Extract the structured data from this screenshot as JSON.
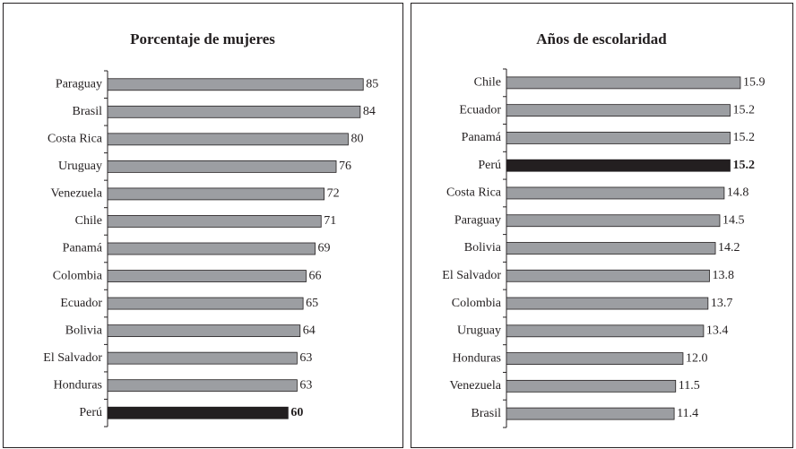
{
  "chart_data": [
    {
      "type": "bar",
      "orientation": "horizontal",
      "title": "Porcentaje de mujeres",
      "categories": [
        "Paraguay",
        "Brasil",
        "Costa Rica",
        "Uruguay",
        "Venezuela",
        "Chile",
        "Panamá",
        "Colombia",
        "Ecuador",
        "Bolivia",
        "El Salvador",
        "Honduras",
        "Perú"
      ],
      "values": [
        85,
        84,
        80,
        76,
        72,
        71,
        69,
        66,
        65,
        64,
        63,
        63,
        60
      ],
      "color": "#9c9ea2",
      "colors": [
        "#9c9ea2",
        "#9c9ea2",
        "#9c9ea2",
        "#9c9ea2",
        "#9c9ea2",
        "#9c9ea2",
        "#9c9ea2",
        "#9c9ea2",
        "#9c9ea2",
        "#9c9ea2",
        "#9c9ea2",
        "#9c9ea2",
        "#231f20"
      ],
      "xlim": [
        0,
        90
      ]
    },
    {
      "type": "bar",
      "orientation": "horizontal",
      "title": "Años de escolaridad",
      "categories": [
        "Chile",
        "Ecuador",
        "Panamá",
        "Perú",
        "Costa Rica",
        "Paraguay",
        "Bolivia",
        "El Salvador",
        "Colombia",
        "Uruguay",
        "Honduras",
        "Venezuela",
        "Brasil"
      ],
      "values": [
        15.9,
        15.2,
        15.2,
        15.2,
        14.8,
        14.5,
        14.2,
        13.8,
        13.7,
        13.4,
        12.0,
        11.5,
        11.4
      ],
      "value_labels": [
        "15.9",
        "15.2",
        "15.2",
        "15.2",
        "14.8",
        "14.5",
        "14.2",
        "13.8",
        "13.7",
        "13.4",
        "12.0",
        "11.5",
        "11.4"
      ],
      "color": "#9c9ea2",
      "colors": [
        "#9c9ea2",
        "#9c9ea2",
        "#9c9ea2",
        "#231f20",
        "#9c9ea2",
        "#9c9ea2",
        "#9c9ea2",
        "#9c9ea2",
        "#9c9ea2",
        "#9c9ea2",
        "#9c9ea2",
        "#9c9ea2",
        "#9c9ea2"
      ],
      "xlim": [
        0,
        17
      ]
    }
  ]
}
